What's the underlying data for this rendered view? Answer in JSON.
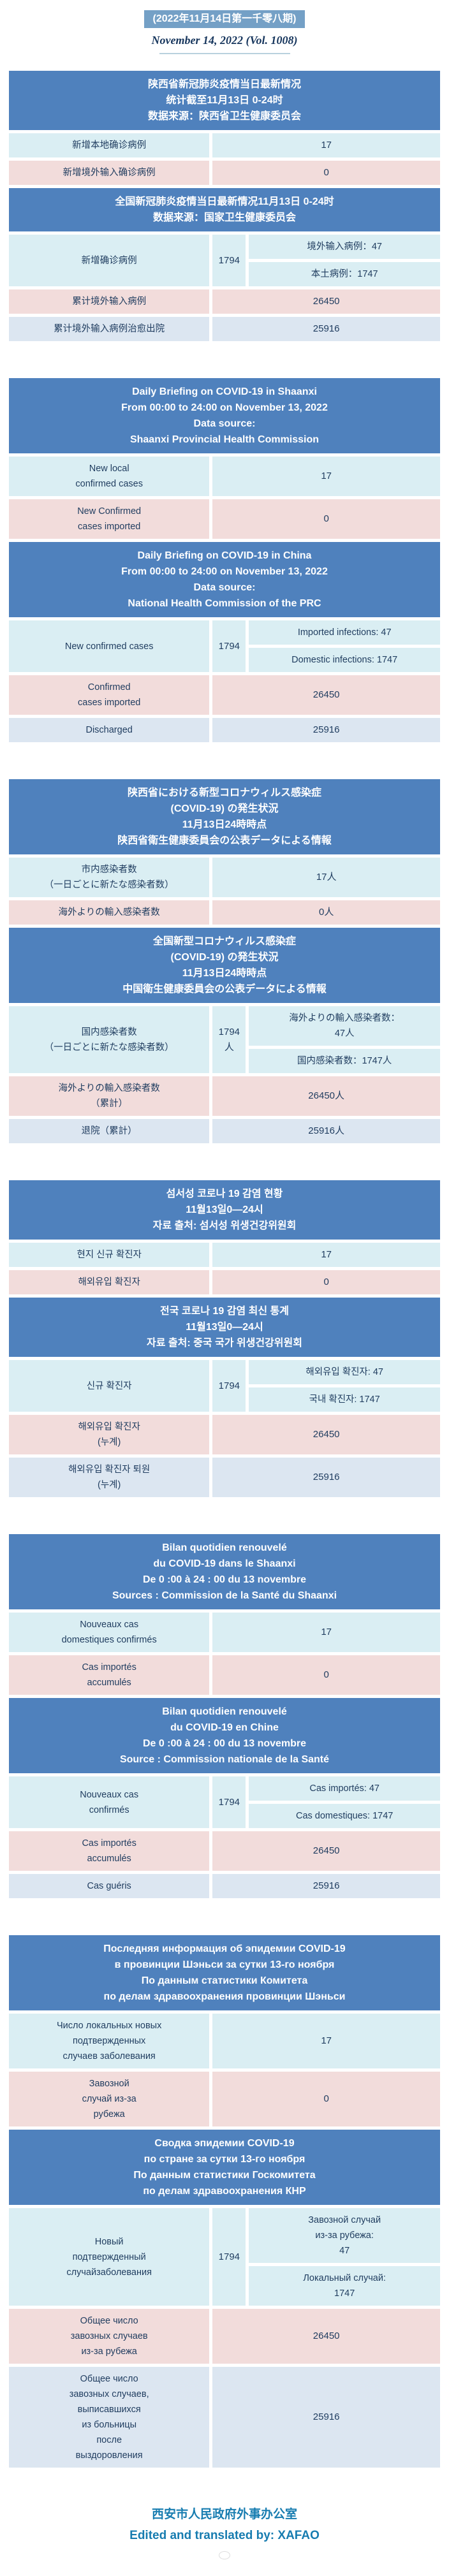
{
  "masthead": {
    "issue_title": "(2022年11月14日第一千零八期)",
    "issue_subtitle": "November 14, 2022 (Vol. 1008)"
  },
  "colors": {
    "header_blue": "#4f81bd",
    "masthead_bar_blue": "#74a0c6",
    "row_cyan": "#daeef3",
    "row_pink": "#f2dcdb",
    "row_lavender": "#dce6f1",
    "cell_text": "#1f3c5f",
    "footer_blue": "#177cb0",
    "subtitle_navy": "#17365d"
  },
  "sections": [
    {
      "lang": "Chinese",
      "shaanxi": {
        "header": "陕西省新冠肺炎疫情当日最新情况\n统计截至11月13日 0-24时\n数据来源：陕西省卫生健康委员会",
        "rows": [
          {
            "label": "新增本地确诊病例",
            "value": "17"
          },
          {
            "label": "新增境外输入确诊病例",
            "value": "0"
          }
        ]
      },
      "china": {
        "header": "全国新冠肺炎疫情当日最新情况11月13日 0-24时\n数据来源：国家卫生健康委员会",
        "new_cases": {
          "label": "新增确诊病例",
          "total": "1794",
          "imported": "境外输入病例：47",
          "domestic": "本土病例：1747"
        },
        "rows": [
          {
            "label": "累计境外输入病例",
            "value": "26450"
          },
          {
            "label": "累计境外输入病例治愈出院",
            "value": "25916"
          }
        ]
      }
    },
    {
      "lang": "English",
      "shaanxi": {
        "header": "Daily Briefing on COVID-19 in Shaanxi\nFrom 00:00 to 24:00 on November 13, 2022\nData source:\nShaanxi Provincial Health Commission",
        "rows": [
          {
            "label": "New local\nconfirmed cases",
            "value": "17"
          },
          {
            "label": "New Confirmed\ncases imported",
            "value": "0"
          }
        ]
      },
      "china": {
        "header": "Daily Briefing on COVID-19 in China\nFrom 00:00 to 24:00 on November 13, 2022\nData source:\nNational Health Commission of the PRC",
        "new_cases": {
          "label": "New confirmed cases",
          "total": "1794",
          "imported": "Imported infections: 47",
          "domestic": "Domestic infections: 1747"
        },
        "rows": [
          {
            "label": "Confirmed\ncases imported",
            "value": "26450"
          },
          {
            "label": "Discharged",
            "value": "25916"
          }
        ]
      }
    },
    {
      "lang": "Japanese",
      "shaanxi": {
        "header": "陕西省における新型コロナウィルス感染症\n(COVID-19) の発生状況\n11月13日24時時点\n陕西省衛生健康委員会の公表データによる情報",
        "rows": [
          {
            "label": "市内感染者数\n（一日ごとに新たな感染者数）",
            "value": "17人"
          },
          {
            "label": "海外よりの輸入感染者数",
            "value": "0人"
          }
        ]
      },
      "china": {
        "header": "全国新型コロナウィルス感染症\n(COVID-19) の発生状況\n11月13日24時時点\n中国衛生健康委員会の公表データによる情報",
        "new_cases": {
          "label": "国内感染者数\n（一日ごとに新たな感染者数）",
          "total": "1794人",
          "imported": "海外よりの輸入感染者数：\n47人",
          "domestic": "国内感染者数：1747人"
        },
        "rows": [
          {
            "label": "海外よりの輸入感染者数\n（累計）",
            "value": "26450人"
          },
          {
            "label": "退院（累計）",
            "value": "25916人"
          }
        ]
      }
    },
    {
      "lang": "Korean",
      "shaanxi": {
        "header": "섬서성 코로나 19 감염 현황\n11월13일0—24시\n자료 출처: 섬서성 위생건강위원회",
        "rows": [
          {
            "label": "현지 신규 확진자",
            "value": "17"
          },
          {
            "label": "해외유입 확진자",
            "value": "0"
          }
        ]
      },
      "china": {
        "header": "전국 코로나 19 감염 최신 통계\n11월13일0—24시\n자료 출처: 중국 국가 위생건강위원회",
        "new_cases": {
          "label": "신규 확진자",
          "total": "1794",
          "imported": "해외유입 확진자: 47",
          "domestic": "국내 확진자: 1747"
        },
        "rows": [
          {
            "label": "해외유입 확진자\n(누계)",
            "value": "26450"
          },
          {
            "label": "해외유입 확진자 퇴원\n(누계)",
            "value": "25916"
          }
        ]
      }
    },
    {
      "lang": "French",
      "shaanxi": {
        "header": "Bilan quotidien renouvelé\ndu COVID-19 dans le Shaanxi\nDe 0 :00 à 24 : 00 du 13 novembre\nSources : Commission de la Santé du Shaanxi",
        "rows": [
          {
            "label": "Nouveaux cas\ndomestiques confirmés",
            "value": "17"
          },
          {
            "label": "Cas importés\naccumulés",
            "value": "0"
          }
        ]
      },
      "china": {
        "header": "Bilan quotidien renouvelé\ndu COVID-19 en Chine\nDe 0 :00 à 24 : 00 du 13 novembre\nSource : Commission nationale de la Santé",
        "new_cases": {
          "label": "Nouveaux cas\nconfirmés",
          "total": "1794",
          "imported": "Cas importés: 47",
          "domestic": "Cas domestiques: 1747"
        },
        "rows": [
          {
            "label": "Cas importés\naccumulés",
            "value": "26450"
          },
          {
            "label": "Cas guéris",
            "value": "25916"
          }
        ]
      }
    },
    {
      "lang": "Russian",
      "shaanxi": {
        "header": "Последняя информация об эпидемии COVID-19\nв провинции Шэньси за сутки 13-го ноября\nПо данным статистики Комитета\nпо делам здравоохранения провинции Шэньси",
        "rows": [
          {
            "label": "Число локальных новых\nподтвержденных\nслучаев заболевания",
            "value": "17"
          },
          {
            "label": "Завозной\nслучай из-за\nрубежа",
            "value": "0"
          }
        ]
      },
      "china": {
        "header": "Сводка эпидемии COVID-19\nпо стране за сутки 13-го ноября\nПо данным статистики Госкомитета\nпо делам здравоохранения КНР",
        "new_cases": {
          "label": "Новый\nподтвержденный\nслучайзаболевания",
          "total": "1794",
          "imported": "Завозной случай\nиз-за рубежа:\n47",
          "domestic": "Локальный случай:\n1747"
        },
        "rows": [
          {
            "label": "Общее число\nзавозных случаев\nиз-за рубежа",
            "value": "26450"
          },
          {
            "label": "Общее число\nзавозных случаев,\nвыписавшихся\nиз больницы\nпосле\nвыздоровления",
            "value": "25916"
          }
        ]
      }
    }
  ],
  "footer": {
    "line_cn": "西安市人民政府外事办公室",
    "line_en": "Edited and translated by: XAFAO"
  }
}
